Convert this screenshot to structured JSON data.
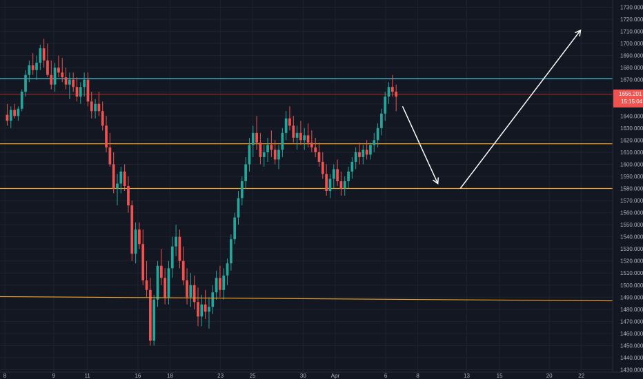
{
  "chart_data": {
    "type": "candlestick",
    "ylim": [
      1428,
      1736
    ],
    "xlim": [
      -0.9,
      75.5
    ],
    "y_ticks": [
      "1430.000",
      "1440.000",
      "1450.000",
      "1460.000",
      "1470.000",
      "1480.000",
      "1490.000",
      "1500.000",
      "1510.000",
      "1520.000",
      "1530.000",
      "1540.000",
      "1550.000",
      "1560.000",
      "1570.000",
      "1580.000",
      "1590.000",
      "1600.000",
      "1610.000",
      "1620.000",
      "1630.000",
      "1640.000",
      "1650.000",
      "1660.000",
      "1670.000",
      "1680.000",
      "1690.000",
      "1700.000",
      "1710.000",
      "1720.000",
      "1730.000"
    ],
    "x_ticks": [
      {
        "label": "8",
        "x": -0.3
      },
      {
        "label": "9",
        "x": 5.8
      },
      {
        "label": "11",
        "x": 10.0
      },
      {
        "label": "16",
        "x": 16.3
      },
      {
        "label": "18",
        "x": 20.3
      },
      {
        "label": "23",
        "x": 26.6
      },
      {
        "label": "25",
        "x": 30.6
      },
      {
        "label": "30",
        "x": 36.9
      },
      {
        "label": "Apr",
        "x": 40.9
      },
      {
        "label": "6",
        "x": 47.2
      },
      {
        "label": "8",
        "x": 51.2
      },
      {
        "label": "13",
        "x": 57.3
      },
      {
        "label": "15",
        "x": 61.4
      },
      {
        "label": "20",
        "x": 67.6
      },
      {
        "label": "22",
        "x": 71.6
      }
    ],
    "candles": [
      [
        1641,
        1650,
        1632,
        1636
      ],
      [
        1636,
        1648,
        1630,
        1645
      ],
      [
        1645,
        1650,
        1638,
        1640
      ],
      [
        1640,
        1648,
        1636,
        1646
      ],
      [
        1646,
        1662,
        1644,
        1660
      ],
      [
        1660,
        1678,
        1656,
        1674
      ],
      [
        1674,
        1686,
        1668,
        1682
      ],
      [
        1682,
        1692,
        1674,
        1678
      ],
      [
        1678,
        1690,
        1670,
        1684
      ],
      [
        1684,
        1699,
        1678,
        1696
      ],
      [
        1696,
        1704,
        1680,
        1686
      ],
      [
        1686,
        1700,
        1672,
        1674
      ],
      [
        1674,
        1686,
        1662,
        1666
      ],
      [
        1666,
        1684,
        1660,
        1680
      ],
      [
        1680,
        1690,
        1672,
        1676
      ],
      [
        1676,
        1688,
        1668,
        1672
      ],
      [
        1672,
        1680,
        1662,
        1666
      ],
      [
        1666,
        1676,
        1654,
        1670
      ],
      [
        1670,
        1676,
        1660,
        1664
      ],
      [
        1664,
        1672,
        1652,
        1656
      ],
      [
        1656,
        1668,
        1650,
        1664
      ],
      [
        1664,
        1676,
        1656,
        1670
      ],
      [
        1670,
        1676,
        1648,
        1652
      ],
      [
        1652,
        1660,
        1638,
        1644
      ],
      [
        1644,
        1654,
        1638,
        1650
      ],
      [
        1650,
        1660,
        1640,
        1644
      ],
      [
        1644,
        1652,
        1628,
        1632
      ],
      [
        1632,
        1640,
        1610,
        1614
      ],
      [
        1614,
        1626,
        1598,
        1600
      ],
      [
        1600,
        1610,
        1576,
        1580
      ],
      [
        1580,
        1592,
        1566,
        1584
      ],
      [
        1584,
        1598,
        1576,
        1594
      ],
      [
        1594,
        1600,
        1578,
        1582
      ],
      [
        1582,
        1590,
        1560,
        1566
      ],
      [
        1566,
        1570,
        1520,
        1526
      ],
      [
        1526,
        1552,
        1518,
        1546
      ],
      [
        1546,
        1552,
        1530,
        1534
      ],
      [
        1534,
        1546,
        1500,
        1504
      ],
      [
        1504,
        1520,
        1490,
        1496
      ],
      [
        1496,
        1506,
        1450,
        1454
      ],
      [
        1454,
        1492,
        1450,
        1488
      ],
      [
        1488,
        1520,
        1482,
        1516
      ],
      [
        1516,
        1530,
        1500,
        1506
      ],
      [
        1506,
        1514,
        1484,
        1490
      ],
      [
        1490,
        1520,
        1484,
        1514
      ],
      [
        1514,
        1540,
        1506,
        1532
      ],
      [
        1532,
        1550,
        1524,
        1540
      ],
      [
        1540,
        1546,
        1514,
        1520
      ],
      [
        1520,
        1532,
        1500,
        1504
      ],
      [
        1504,
        1514,
        1484,
        1490
      ],
      [
        1490,
        1510,
        1482,
        1500
      ],
      [
        1500,
        1508,
        1480,
        1486
      ],
      [
        1486,
        1498,
        1466,
        1474
      ],
      [
        1474,
        1492,
        1466,
        1484
      ],
      [
        1484,
        1496,
        1472,
        1478
      ],
      [
        1478,
        1490,
        1464,
        1482
      ],
      [
        1482,
        1500,
        1476,
        1494
      ],
      [
        1494,
        1512,
        1488,
        1506
      ],
      [
        1506,
        1516,
        1490,
        1496
      ],
      [
        1496,
        1514,
        1488,
        1508
      ],
      [
        1508,
        1522,
        1500,
        1518
      ],
      [
        1518,
        1542,
        1512,
        1538
      ],
      [
        1538,
        1560,
        1534,
        1556
      ],
      [
        1556,
        1578,
        1550,
        1572
      ],
      [
        1572,
        1590,
        1566,
        1586
      ],
      [
        1586,
        1606,
        1580,
        1600
      ],
      [
        1600,
        1622,
        1594,
        1616
      ],
      [
        1616,
        1632,
        1606,
        1626
      ],
      [
        1626,
        1640,
        1612,
        1618
      ],
      [
        1618,
        1626,
        1600,
        1606
      ],
      [
        1606,
        1616,
        1598,
        1610
      ],
      [
        1610,
        1622,
        1602,
        1616
      ],
      [
        1616,
        1628,
        1606,
        1612
      ],
      [
        1612,
        1620,
        1600,
        1604
      ],
      [
        1604,
        1616,
        1596,
        1612
      ],
      [
        1612,
        1630,
        1606,
        1626
      ],
      [
        1626,
        1644,
        1620,
        1638
      ],
      [
        1638,
        1648,
        1628,
        1632
      ],
      [
        1632,
        1640,
        1618,
        1622
      ],
      [
        1622,
        1632,
        1612,
        1626
      ],
      [
        1626,
        1636,
        1616,
        1620
      ],
      [
        1620,
        1630,
        1612,
        1624
      ],
      [
        1624,
        1634,
        1614,
        1618
      ],
      [
        1618,
        1628,
        1610,
        1614
      ],
      [
        1614,
        1622,
        1606,
        1610
      ],
      [
        1610,
        1618,
        1598,
        1602
      ],
      [
        1602,
        1610,
        1588,
        1592
      ],
      [
        1592,
        1600,
        1574,
        1578
      ],
      [
        1578,
        1592,
        1572,
        1588
      ],
      [
        1588,
        1600,
        1580,
        1596
      ],
      [
        1596,
        1604,
        1582,
        1586
      ],
      [
        1586,
        1594,
        1574,
        1580
      ],
      [
        1580,
        1590,
        1574,
        1586
      ],
      [
        1586,
        1598,
        1580,
        1594
      ],
      [
        1594,
        1606,
        1588,
        1602
      ],
      [
        1602,
        1614,
        1596,
        1610
      ],
      [
        1610,
        1618,
        1600,
        1606
      ],
      [
        1606,
        1616,
        1600,
        1612
      ],
      [
        1612,
        1620,
        1604,
        1608
      ],
      [
        1608,
        1618,
        1604,
        1616
      ],
      [
        1616,
        1626,
        1610,
        1620
      ],
      [
        1620,
        1634,
        1614,
        1630
      ],
      [
        1630,
        1646,
        1624,
        1642
      ],
      [
        1642,
        1660,
        1636,
        1656
      ],
      [
        1656,
        1668,
        1650,
        1664
      ],
      [
        1664,
        1674,
        1656,
        1660
      ],
      [
        1660,
        1666,
        1644,
        1656
      ]
    ],
    "candle_start_x": 0,
    "candle_step": 0.4,
    "hlines": [
      {
        "value": 1671,
        "color": "#4dd0e1"
      },
      {
        "value": 1658,
        "color": "#8b2b2b"
      },
      {
        "value": 1617,
        "color": "#f5a623"
      },
      {
        "value": 1580,
        "color": "#f5a623"
      }
    ],
    "trendlines": [
      {
        "x1": -1,
        "y1": 1490.5,
        "x2": 75.5,
        "y2": 1487,
        "color": "#f5a623"
      }
    ],
    "arrows": [
      {
        "x1": 49.3,
        "y1": 1648,
        "x2": 53.7,
        "y2": 1584,
        "color": "#ffffff"
      },
      {
        "x1": 56.5,
        "y1": 1580,
        "x2": 71.5,
        "y2": 1711,
        "color": "#ffffff"
      }
    ],
    "current_price": {
      "value": 1656.201,
      "label": "1656.201",
      "countdown": "15:15:04",
      "color": "#ef5350"
    },
    "up_color": "#26a69a",
    "down_color": "#ef5350"
  }
}
